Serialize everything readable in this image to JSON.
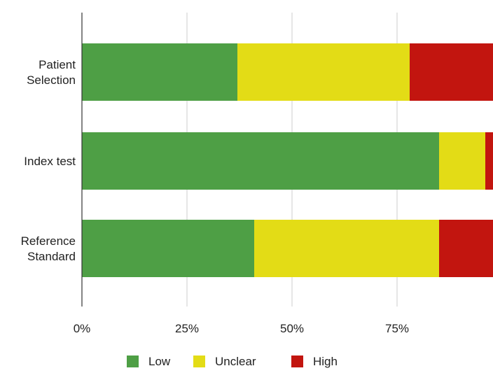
{
  "chart_data": {
    "type": "bar",
    "orientation": "horizontal",
    "stacked": true,
    "categories": [
      [
        "Patient",
        "Selection"
      ],
      [
        "Index test"
      ],
      [
        "Reference",
        "Standard"
      ]
    ],
    "series": [
      {
        "name": "Low",
        "color": "#4e9f45",
        "values": [
          37,
          85,
          41
        ]
      },
      {
        "name": "Unclear",
        "color": "#e3dc16",
        "values": [
          41,
          11,
          44
        ]
      },
      {
        "name": "High",
        "color": "#c2150f",
        "values": [
          22,
          4,
          15
        ]
      }
    ],
    "xlim": [
      0,
      100
    ],
    "xticks": [
      0,
      25,
      50,
      75
    ],
    "xtick_labels": [
      "0%",
      "25%",
      "50%",
      "75%"
    ],
    "grid": true,
    "legend_position": "bottom"
  }
}
